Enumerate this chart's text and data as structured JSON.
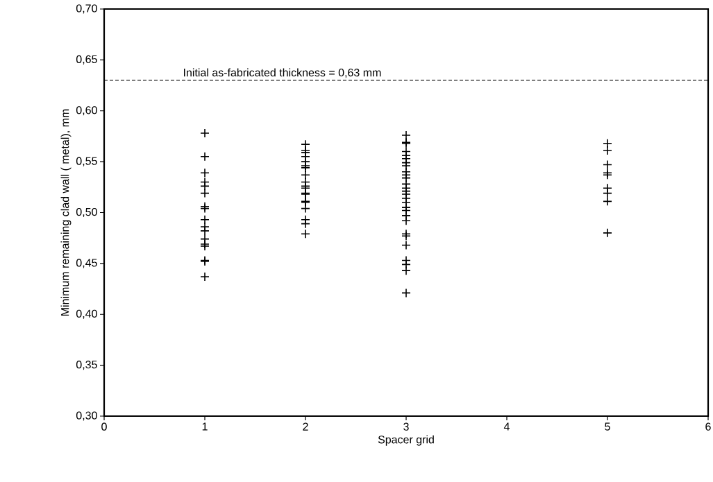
{
  "chart_data": {
    "type": "scatter",
    "xlabel": "Spacer grid",
    "ylabel": "Minimum remaining clad wall ( metal), mm",
    "marker": "cross",
    "xlim": [
      0,
      6
    ],
    "xticks": [
      0,
      1,
      2,
      3,
      4,
      5,
      6
    ],
    "ylim": [
      0.3,
      0.7
    ],
    "yticks": [
      {
        "value": 0.3,
        "label": "0,30"
      },
      {
        "value": 0.35,
        "label": "0,35"
      },
      {
        "value": 0.4,
        "label": "0,40"
      },
      {
        "value": 0.45,
        "label": "0,45"
      },
      {
        "value": 0.5,
        "label": "0,50"
      },
      {
        "value": 0.55,
        "label": "0,55"
      },
      {
        "value": 0.6,
        "label": "0,60"
      },
      {
        "value": 0.65,
        "label": "0,65"
      },
      {
        "value": 0.7,
        "label": "0,70"
      }
    ],
    "ref_lines": [
      {
        "axis": "y",
        "value": 0.63,
        "label": "Initial as-fabricated thickness = 0,63 mm",
        "line_style": "dashed",
        "color": "#000000"
      }
    ],
    "series": [
      {
        "color": "#000000",
        "x": [
          1,
          1,
          1,
          1,
          1,
          1,
          1,
          1,
          1,
          1,
          1,
          1,
          1,
          1,
          1,
          1,
          1
        ],
        "values": [
          0.578,
          0.555,
          0.539,
          0.53,
          0.526,
          0.519,
          0.506,
          0.504,
          0.493,
          0.486,
          0.482,
          0.474,
          0.469,
          0.467,
          0.453,
          0.452,
          0.437
        ]
      },
      {
        "color": "#000000",
        "x": [
          2,
          2,
          2,
          2,
          2,
          2,
          2,
          2,
          2,
          2,
          2,
          2,
          2,
          2,
          2,
          2,
          2,
          2,
          2
        ],
        "values": [
          0.567,
          0.561,
          0.559,
          0.555,
          0.55,
          0.546,
          0.544,
          0.537,
          0.53,
          0.526,
          0.524,
          0.519,
          0.518,
          0.511,
          0.51,
          0.504,
          0.493,
          0.489,
          0.479
        ]
      },
      {
        "color": "#000000",
        "x": [
          3,
          3,
          3,
          3,
          3,
          3,
          3,
          3,
          3,
          3,
          3,
          3,
          3,
          3,
          3,
          3,
          3,
          3,
          3,
          3,
          3,
          3,
          3,
          3,
          3,
          3,
          3,
          3
        ],
        "values": [
          0.576,
          0.569,
          0.568,
          0.56,
          0.556,
          0.553,
          0.549,
          0.546,
          0.54,
          0.537,
          0.534,
          0.528,
          0.524,
          0.521,
          0.518,
          0.514,
          0.51,
          0.505,
          0.502,
          0.497,
          0.492,
          0.479,
          0.477,
          0.468,
          0.453,
          0.449,
          0.443,
          0.421
        ]
      },
      {
        "color": "#000000",
        "x": [
          5,
          5,
          5,
          5,
          5,
          5,
          5,
          5,
          5
        ],
        "values": [
          0.568,
          0.561,
          0.547,
          0.539,
          0.537,
          0.524,
          0.519,
          0.511,
          0.48
        ]
      }
    ]
  }
}
